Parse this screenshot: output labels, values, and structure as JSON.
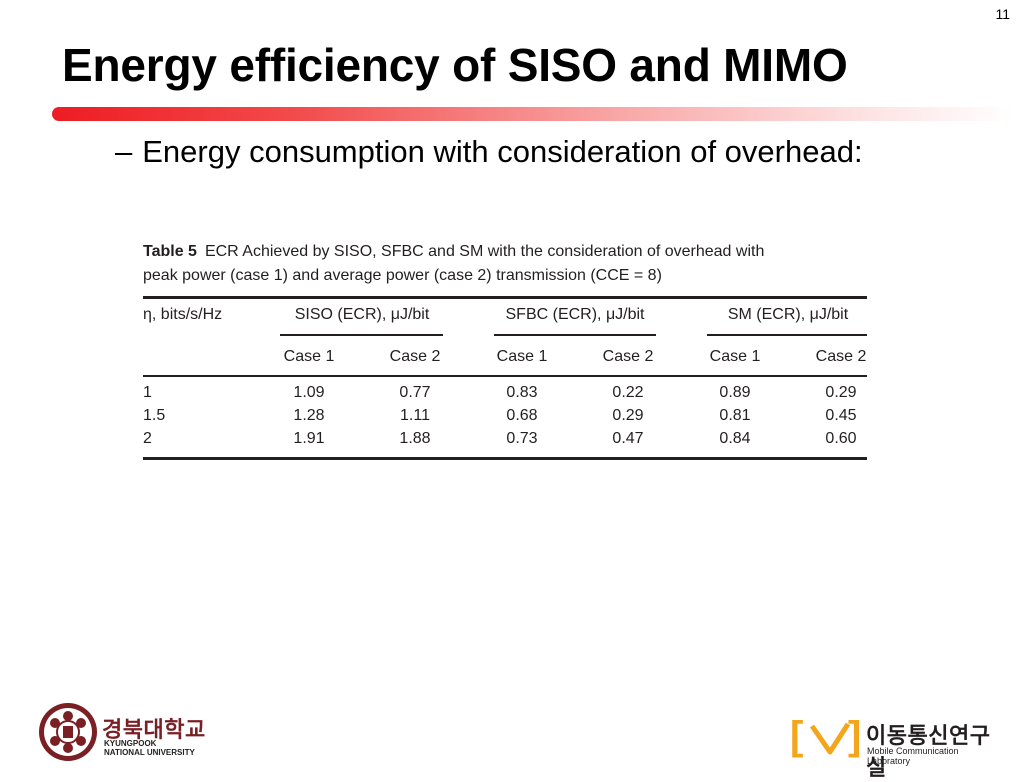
{
  "page_number": "11",
  "title": "Energy efficiency of SISO and MIMO",
  "bullet": {
    "dash": "–",
    "text": "Energy consumption with consideration of overhead:"
  },
  "table": {
    "label": "Table 5",
    "caption_line1": "ECR Achieved by SISO, SFBC and SM with the consideration of overhead with",
    "caption_line2": "peak power (case 1) and average power (case 2) transmission (CCE = 8)",
    "row_header": "η, bits/s/Hz",
    "groups": [
      "SISO (ECR), μJ/bit",
      "SFBC (ECR), μJ/bit",
      "SM (ECR), μJ/bit"
    ],
    "subheaders": [
      "Case 1",
      "Case 2",
      "Case 1",
      "Case 2",
      "Case 1",
      "Case 2"
    ],
    "rows": [
      {
        "eta": "1",
        "values": [
          "1.09",
          "0.77",
          "0.83",
          "0.22",
          "0.89",
          "0.29"
        ]
      },
      {
        "eta": "1.5",
        "values": [
          "1.28",
          "1.11",
          "0.68",
          "0.29",
          "0.81",
          "0.45"
        ]
      },
      {
        "eta": "2",
        "values": [
          "1.91",
          "1.88",
          "0.73",
          "0.47",
          "0.84",
          "0.60"
        ]
      }
    ]
  },
  "footer": {
    "university_korean": "경북대학교",
    "university_english_line1": "KYUNGPOOK",
    "university_english_line2": "NATIONAL UNIVERSITY",
    "lab_korean": "이동통신연구실",
    "lab_english": "Mobile Communication Laboratory",
    "accent_color": "#f3a51c",
    "university_color": "#7a1f24"
  }
}
